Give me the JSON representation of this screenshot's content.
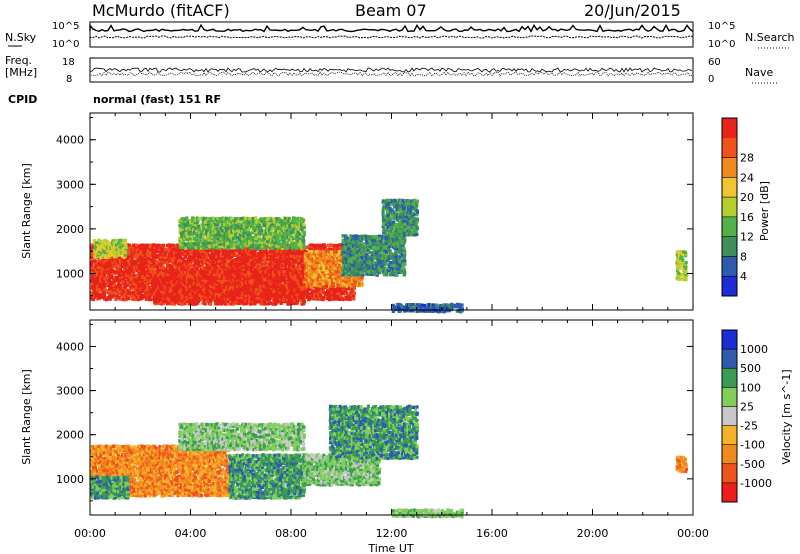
{
  "header": {
    "station": "McMurdo (fitACF)",
    "beam": "Beam 07",
    "date": "20/Jun/2015"
  },
  "noise_panel": {
    "left_label": "N.Sky",
    "right_label": "N.Search",
    "left_ticks": [
      "10^5",
      "10^0"
    ],
    "right_ticks": [
      "10^5",
      "10^0"
    ]
  },
  "freq_panel": {
    "left_label_1": "Freq.",
    "left_label_2": "[MHz]",
    "right_label": "Nave",
    "left_ticks": [
      "18",
      "8"
    ],
    "right_ticks": [
      "60",
      "0"
    ]
  },
  "cpid": {
    "label": "CPID",
    "text": "normal (fast) 151 RF"
  },
  "colors": {
    "power": [
      "#1b2bd6",
      "#2c5bb0",
      "#3f8f5a",
      "#52b24a",
      "#b5cf2f",
      "#f2c531",
      "#f08a1f",
      "#f0521c",
      "#e8231a"
    ],
    "velocity": [
      "#ee1c1c",
      "#f0521c",
      "#f08a1f",
      "#f5b12a",
      "#c8c8c8",
      "#7fcf5a",
      "#3a9c52",
      "#2c5bb0",
      "#1b2bd6"
    ]
  },
  "chart_data": [
    {
      "type": "heatmap",
      "name_text": "Power",
      "ylabel": "Slant Range [km]",
      "xlabel": "Time UT",
      "xlim": [
        0,
        24
      ],
      "ylim": [
        180,
        4600
      ],
      "x_ticks": [
        "00:00",
        "04:00",
        "08:00",
        "12:00",
        "16:00",
        "20:00",
        "00:00"
      ],
      "y_ticks": [
        1000,
        2000,
        3000,
        4000
      ],
      "colorbar": {
        "label": "Power [dB]",
        "range": [
          0,
          32
        ],
        "ticks": [
          "4",
          "8",
          "12",
          "16",
          "20",
          "24",
          "28"
        ]
      },
      "regions": [
        {
          "t": [
            0.0,
            10.5
          ],
          "r": [
            450,
            1700
          ],
          "level": 8
        },
        {
          "t": [
            0.1,
            1.4
          ],
          "r": [
            1400,
            1800
          ],
          "level": 4
        },
        {
          "t": [
            2.5,
            8.5
          ],
          "r": [
            350,
            1100
          ],
          "level": 8
        },
        {
          "t": [
            8.5,
            10.8
          ],
          "r": [
            750,
            1550
          ],
          "level": 6
        },
        {
          "t": [
            10.0,
            12.5
          ],
          "r": [
            1000,
            1900
          ],
          "level": 2
        },
        {
          "t": [
            11.6,
            13.0
          ],
          "r": [
            1900,
            2700
          ],
          "level": 2
        },
        {
          "t": [
            3.5,
            8.5
          ],
          "r": [
            1600,
            2300
          ],
          "level": 3
        },
        {
          "t": [
            12.0,
            14.8
          ],
          "r": [
            180,
            360
          ],
          "level": 1
        },
        {
          "t": [
            23.3,
            23.7
          ],
          "r": [
            900,
            1550
          ],
          "level": 4
        }
      ]
    },
    {
      "type": "heatmap",
      "name_text": "Velocity",
      "ylabel": "Slant Range [km]",
      "xlabel": "Time UT",
      "xlim": [
        0,
        24
      ],
      "ylim": [
        180,
        4600
      ],
      "x_ticks": [
        "00:00",
        "04:00",
        "08:00",
        "12:00",
        "16:00",
        "20:00",
        "00:00"
      ],
      "y_ticks": [
        1000,
        2000,
        3000,
        4000
      ],
      "colorbar": {
        "label": "Velocity [m s^-1]",
        "ticks": [
          "-1000",
          "-500",
          "-100",
          "-25",
          "25",
          "100",
          "500",
          "1000"
        ]
      },
      "regions": [
        {
          "t": [
            0.0,
            5.5
          ],
          "r": [
            650,
            1800
          ],
          "level": 2
        },
        {
          "t": [
            0.0,
            1.5
          ],
          "r": [
            600,
            1100
          ],
          "level": 6
        },
        {
          "t": [
            5.5,
            8.5
          ],
          "r": [
            600,
            1600
          ],
          "level": 6
        },
        {
          "t": [
            8.5,
            11.5
          ],
          "r": [
            900,
            1600
          ],
          "level": 5
        },
        {
          "t": [
            9.5,
            13.0
          ],
          "r": [
            1500,
            2700
          ],
          "level": 6
        },
        {
          "t": [
            3.5,
            8.5
          ],
          "r": [
            1700,
            2300
          ],
          "level": 5
        },
        {
          "t": [
            12.0,
            14.8
          ],
          "r": [
            180,
            350
          ],
          "level": 5
        },
        {
          "t": [
            23.3,
            23.7
          ],
          "r": [
            1200,
            1550
          ],
          "level": 2
        }
      ]
    }
  ],
  "xlabel": "Time UT",
  "x_ticks": [
    "00:00",
    "04:00",
    "08:00",
    "12:00",
    "16:00",
    "20:00",
    "00:00"
  ]
}
